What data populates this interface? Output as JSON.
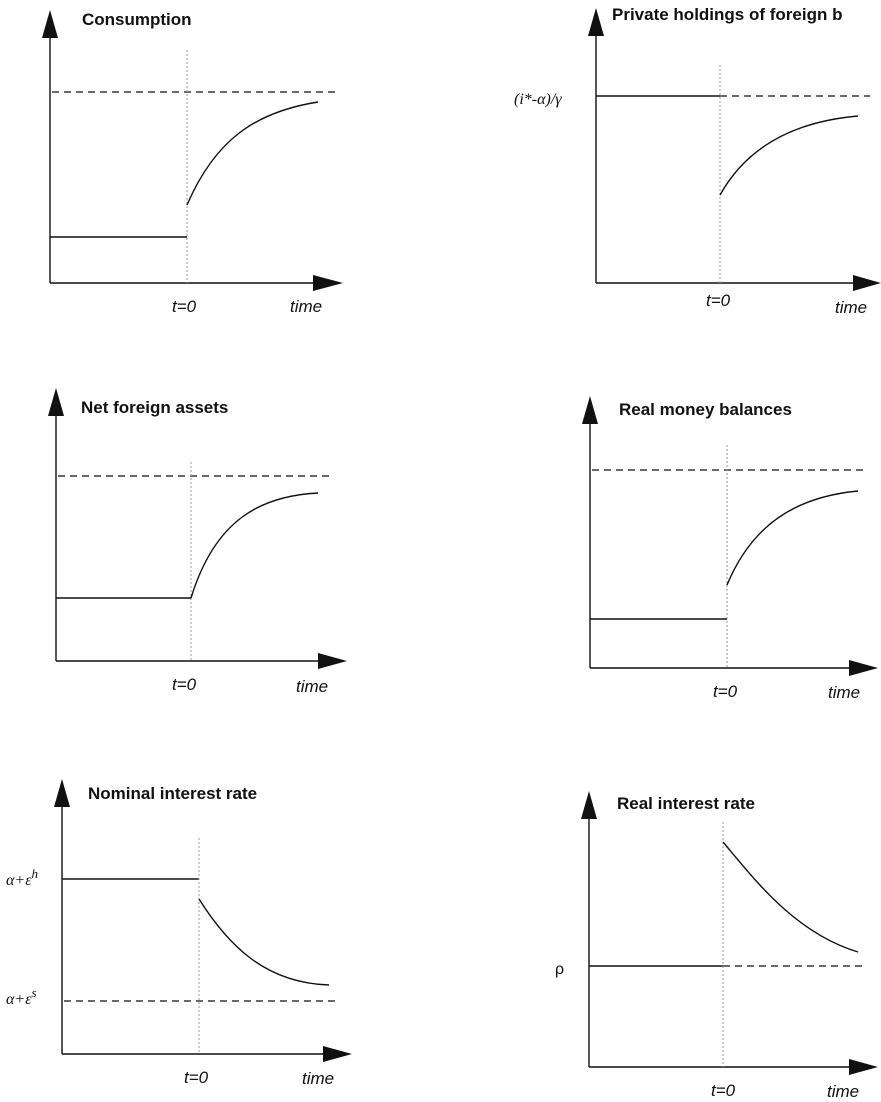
{
  "common": {
    "t0_label": "t=0",
    "time_label": "time"
  },
  "panels": [
    {
      "title": "Consumption",
      "y_label": ""
    },
    {
      "title": "Private holdings of foreign b",
      "y_label": "(i*-α)/γ"
    },
    {
      "title": "Net foreign assets",
      "y_label": ""
    },
    {
      "title": "Real money balances",
      "y_label": ""
    },
    {
      "title": "Nominal interest rate",
      "y_label_top_base": "α+ε",
      "y_label_top_sup": "h",
      "y_label_bottom_base": "α+ε",
      "y_label_bottom_sup": "s"
    },
    {
      "title": "Real interest rate",
      "y_label": "ρ"
    }
  ]
}
